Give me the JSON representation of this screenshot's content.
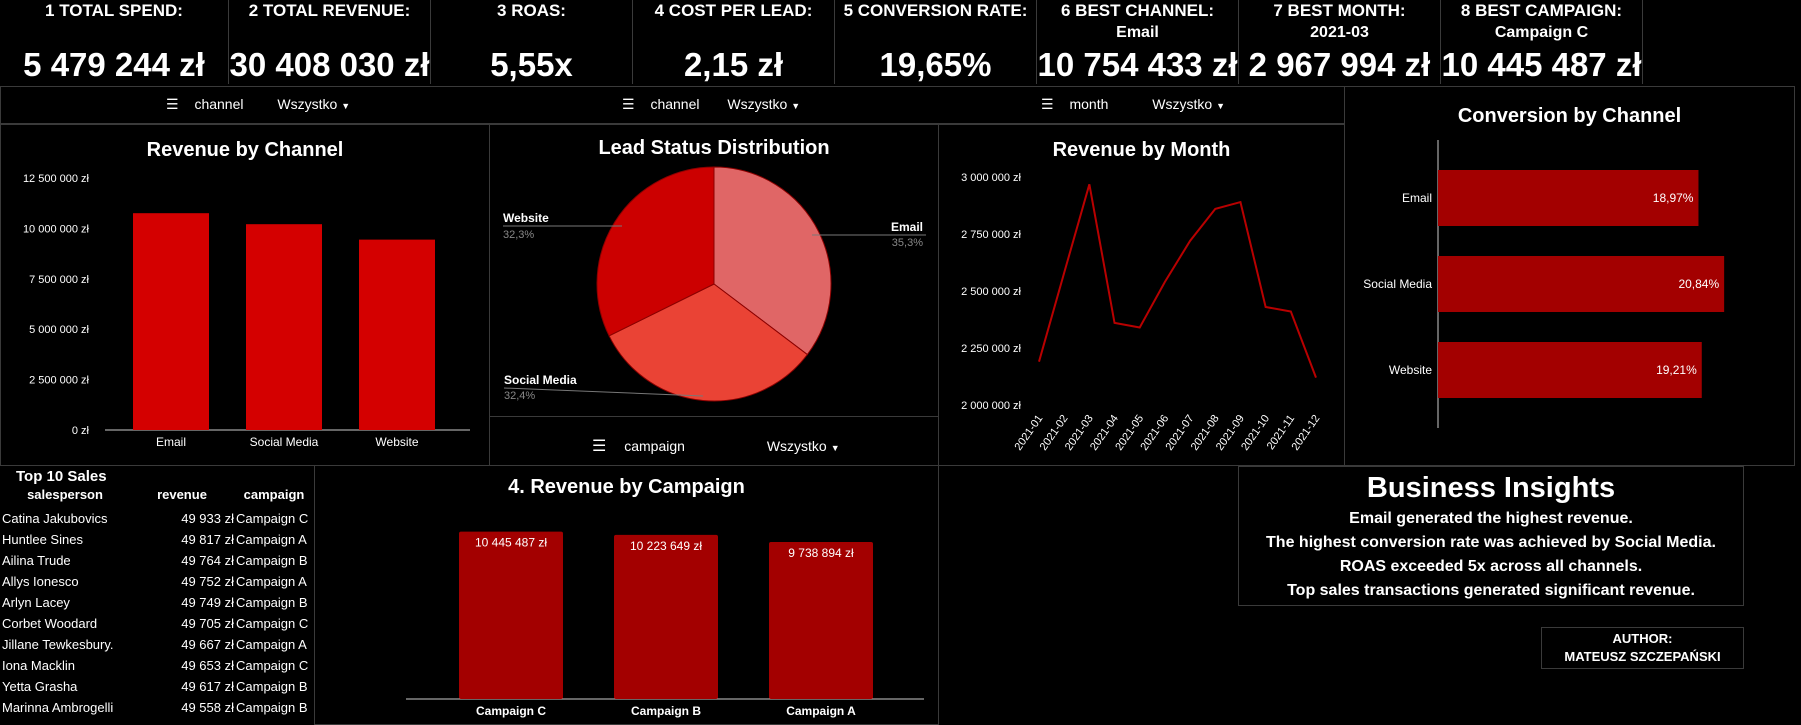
{
  "kpis": [
    {
      "label": "1 TOTAL SPEND:",
      "sub": "",
      "value": "5 479 244 zł"
    },
    {
      "label": "2 TOTAL REVENUE:",
      "sub": "",
      "value": "30 408 030 zł"
    },
    {
      "label": "3 ROAS:",
      "sub": "",
      "value": "5,55x"
    },
    {
      "label": "4 COST PER LEAD:",
      "sub": "",
      "value": "2,15 zł"
    },
    {
      "label": "5 CONVERSION RATE:",
      "sub": "",
      "value": "19,65%"
    },
    {
      "label": "6 BEST CHANNEL:",
      "sub": "Email",
      "value": "10 754 433 zł"
    },
    {
      "label": "7 BEST MONTH:",
      "sub": "2021-03",
      "value": "2 967 994 zł"
    },
    {
      "label": "8 BEST CAMPAIGN:",
      "sub": "Campaign C",
      "value": "10 445 487 zł"
    }
  ],
  "filters": [
    {
      "field": "channel",
      "value": "Wszystko"
    },
    {
      "field": "channel",
      "value": "Wszystko"
    },
    {
      "field": "month",
      "value": "Wszystko"
    },
    {
      "field": "campaign",
      "value": "Wszystko"
    }
  ],
  "colors": {
    "bar_main": "#d40000",
    "bar_dark": "#a30000",
    "pie_email": "#e06666",
    "pie_social": "#ea4335",
    "pie_website": "#cc0000",
    "line": "#b80000"
  },
  "chart_data": [
    {
      "type": "bar",
      "title": "Revenue by Channel",
      "categories": [
        "Email",
        "Social Media",
        "Website"
      ],
      "values": [
        10754433,
        10209000,
        9444000
      ],
      "ylim": [
        0,
        12500000
      ],
      "yticks": [
        "0 zł",
        "2 500 000 zł",
        "5 000 000 zł",
        "7 500 000 zł",
        "10 000 000 zł",
        "12 500 000 zł"
      ]
    },
    {
      "type": "pie",
      "title": "Lead Status Distribution",
      "labels": [
        "Email",
        "Social Media",
        "Website"
      ],
      "values": [
        35.3,
        32.4,
        32.3
      ],
      "pct_labels": [
        "35,3%",
        "32,4%",
        "32,3%"
      ]
    },
    {
      "type": "line",
      "title": "Revenue by Month",
      "x": [
        "2021-01",
        "2021-02",
        "2021-03",
        "2021-04",
        "2021-05",
        "2021-06",
        "2021-07",
        "2021-08",
        "2021-09",
        "2021-10",
        "2021-11",
        "2021-12"
      ],
      "values": [
        2190000,
        2580000,
        2967994,
        2360000,
        2340000,
        2540000,
        2720000,
        2860000,
        2890000,
        2430000,
        2410000,
        2120000
      ],
      "ylim": [
        2000000,
        3000000
      ],
      "yticks": [
        "2 000 000 zł",
        "2 250 000 zł",
        "2 500 000 zł",
        "2 750 000 zł",
        "3 000 000 zł"
      ]
    },
    {
      "type": "bar",
      "title": "Conversion by Channel",
      "orientation": "horizontal",
      "categories": [
        "Email",
        "Social Media",
        "Website"
      ],
      "values": [
        18.97,
        20.84,
        19.21
      ],
      "value_labels": [
        "18,97%",
        "20,84%",
        "19,21%"
      ],
      "xlim": [
        0,
        26
      ]
    },
    {
      "type": "bar",
      "title": "4. Revenue by Campaign",
      "categories": [
        "Campaign C",
        "Campaign B",
        "Campaign A"
      ],
      "values": [
        10445487,
        10223649,
        9738894
      ],
      "value_labels": [
        "10 445 487 zł",
        "10 223 649 zł",
        "9 738 894 zł"
      ],
      "ylim": [
        0,
        11500000
      ]
    },
    {
      "type": "table",
      "title": "Top 10 Sales",
      "columns": [
        "salesperson",
        "revenue",
        "campaign"
      ],
      "rows": [
        [
          "Catina Jakubovics",
          "49 933 zł",
          "Campaign C"
        ],
        [
          "Huntlee Sines",
          "49 817 zł",
          "Campaign A"
        ],
        [
          "Ailina Trude",
          "49 764 zł",
          "Campaign B"
        ],
        [
          "Allys Ionesco",
          "49 752 zł",
          "Campaign A"
        ],
        [
          "Arlyn Lacey",
          "49 749 zł",
          "Campaign B"
        ],
        [
          "Corbet Woodard",
          "49 705 zł",
          "Campaign C"
        ],
        [
          "Jillane Tewkesbury.",
          "49 667 zł",
          "Campaign A"
        ],
        [
          "Iona Macklin",
          "49 653 zł",
          "Campaign C"
        ],
        [
          "Yetta Grasha",
          "49 617 zł",
          "Campaign B"
        ],
        [
          "Marinna Ambrogelli",
          "49 558 zł",
          "Campaign B"
        ]
      ]
    }
  ],
  "insights": {
    "title": "Business Insights",
    "lines": [
      "Email generated the highest revenue.",
      "The highest conversion rate was achieved by Social Media.",
      "ROAS exceeded 5x across all channels.",
      "Top sales transactions generated significant revenue."
    ]
  },
  "author": {
    "label": "AUTHOR:",
    "name": "MATEUSZ SZCZEPAŃSKI"
  }
}
